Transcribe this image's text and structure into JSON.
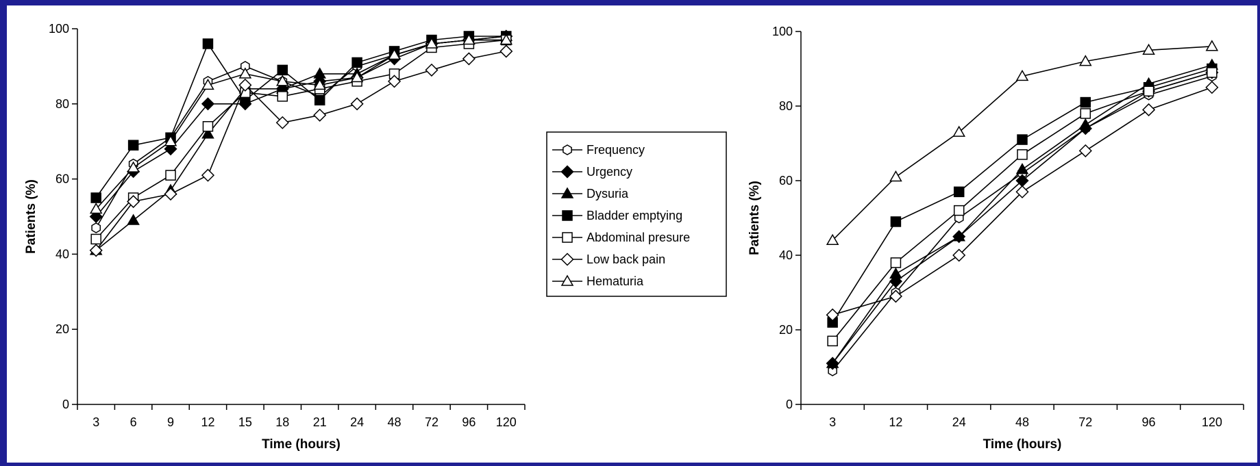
{
  "chart_data": [
    {
      "type": "line",
      "xlabel": "Time (hours)",
      "ylabel": "Patients (%)",
      "categories": [
        "3",
        "6",
        "9",
        "12",
        "15",
        "18",
        "21",
        "24",
        "48",
        "72",
        "96",
        "120"
      ],
      "ylim": [
        0,
        100
      ],
      "yticks": [
        0,
        20,
        40,
        60,
        80,
        100
      ],
      "grid": false,
      "series": [
        {
          "name": "Frequency",
          "marker": "hexagon-open",
          "values": [
            47,
            64,
            71,
            86,
            90,
            86,
            82,
            90,
            93,
            96,
            97,
            97
          ]
        },
        {
          "name": "Urgency",
          "marker": "diamond-filled",
          "values": [
            50,
            62,
            68,
            80,
            80,
            84,
            86,
            87,
            92,
            96,
            97,
            98
          ]
        },
        {
          "name": "Dysuria",
          "marker": "triangle-filled",
          "values": [
            41,
            49,
            57,
            72,
            84,
            84,
            88,
            88,
            93,
            96,
            97,
            98
          ]
        },
        {
          "name": "Bladder emptying",
          "marker": "square-filled",
          "values": [
            55,
            69,
            71,
            96,
            81,
            89,
            81,
            91,
            94,
            97,
            98,
            98
          ]
        },
        {
          "name": "Abdominal presure",
          "marker": "square-open",
          "values": [
            44,
            55,
            61,
            74,
            83,
            82,
            84,
            86,
            88,
            95,
            96,
            97
          ]
        },
        {
          "name": "Low back pain",
          "marker": "diamond-open",
          "values": [
            41,
            54,
            56,
            61,
            85,
            75,
            77,
            80,
            86,
            89,
            92,
            94
          ]
        },
        {
          "name": "Hematuria",
          "marker": "triangle-open",
          "values": [
            52,
            63,
            70,
            85,
            88,
            86,
            85,
            87,
            93,
            96,
            97,
            97
          ]
        }
      ]
    },
    {
      "type": "line",
      "xlabel": "Time (hours)",
      "ylabel": "Patients (%)",
      "categories": [
        "3",
        "12",
        "24",
        "48",
        "72",
        "96",
        "120"
      ],
      "ylim": [
        0,
        100
      ],
      "yticks": [
        0,
        20,
        40,
        60,
        80,
        100
      ],
      "grid": false,
      "series": [
        {
          "name": "Frequency",
          "marker": "hexagon-open",
          "values": [
            9,
            30,
            50,
            62,
            74,
            83,
            88
          ]
        },
        {
          "name": "Urgency",
          "marker": "diamond-filled",
          "values": [
            11,
            33,
            45,
            60,
            74,
            84,
            89
          ]
        },
        {
          "name": "Dysuria",
          "marker": "triangle-filled",
          "values": [
            11,
            35,
            45,
            63,
            75,
            86,
            91
          ]
        },
        {
          "name": "Bladder emptying",
          "marker": "square-filled",
          "values": [
            22,
            49,
            57,
            71,
            81,
            85,
            90
          ]
        },
        {
          "name": "Abdominal presure",
          "marker": "square-open",
          "values": [
            17,
            38,
            52,
            67,
            78,
            84,
            89
          ]
        },
        {
          "name": "Low back pain",
          "marker": "diamond-open",
          "values": [
            24,
            29,
            40,
            57,
            68,
            79,
            85
          ]
        },
        {
          "name": "Hematuria",
          "marker": "triangle-open",
          "values": [
            44,
            61,
            73,
            88,
            92,
            95,
            96
          ]
        }
      ]
    }
  ],
  "legend": {
    "placement": "between panels",
    "items": [
      {
        "label": "Frequency",
        "marker": "hexagon-open"
      },
      {
        "label": "Urgency",
        "marker": "diamond-filled"
      },
      {
        "label": "Dysuria",
        "marker": "triangle-filled"
      },
      {
        "label": "Bladder emptying",
        "marker": "square-filled"
      },
      {
        "label": "Abdominal presure",
        "marker": "square-open"
      },
      {
        "label": "Low back pain",
        "marker": "diamond-open"
      },
      {
        "label": "Hematuria",
        "marker": "triangle-open"
      }
    ]
  },
  "colors": {
    "page_border": "#1f1f93",
    "panel": "#ffffff",
    "ink": "#000000"
  }
}
